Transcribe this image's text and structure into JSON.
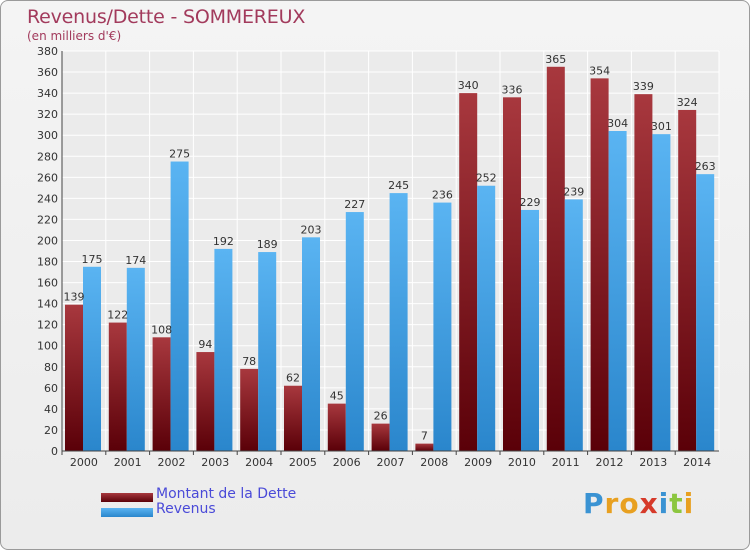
{
  "title": "Revenus/Dette - SOMMEREUX",
  "subtitle": "(en milliers d'€)",
  "colors": {
    "dette": "#6e0a12",
    "revenus": "#3d9ee6",
    "title": "#a23a5c",
    "legend_text": "#4a4ad8"
  },
  "legend": [
    {
      "label": "Montant de la Dette"
    },
    {
      "label": "Revenus"
    }
  ],
  "logo": {
    "text": "Proxiti",
    "letters": [
      {
        "ch": "P",
        "color": "#3a93d3"
      },
      {
        "ch": "r",
        "color": "#e8a020"
      },
      {
        "ch": "o",
        "color": "#e8a020"
      },
      {
        "ch": "x",
        "color": "#d63a2a"
      },
      {
        "ch": "i",
        "color": "#3a93d3"
      },
      {
        "ch": "t",
        "color": "#8cc63f"
      },
      {
        "ch": "i",
        "color": "#e8a020"
      }
    ]
  },
  "chart_data": {
    "type": "bar",
    "categories": [
      "2000",
      "2001",
      "2002",
      "2003",
      "2004",
      "2005",
      "2006",
      "2007",
      "2008",
      "2009",
      "2010",
      "2011",
      "2012",
      "2013",
      "2014"
    ],
    "series": [
      {
        "name": "Montant de la Dette",
        "values": [
          139,
          122,
          108,
          94,
          78,
          62,
          45,
          26,
          7,
          340,
          336,
          365,
          354,
          339,
          324
        ]
      },
      {
        "name": "Revenus",
        "values": [
          175,
          174,
          275,
          192,
          189,
          203,
          227,
          245,
          236,
          252,
          229,
          239,
          304,
          301,
          263
        ]
      }
    ],
    "ylim": [
      0,
      380
    ],
    "yticks": [
      0,
      20,
      40,
      60,
      80,
      100,
      120,
      140,
      160,
      180,
      200,
      220,
      240,
      260,
      280,
      300,
      320,
      340,
      360,
      380
    ],
    "grid": true,
    "legend_position": "bottom-left"
  }
}
